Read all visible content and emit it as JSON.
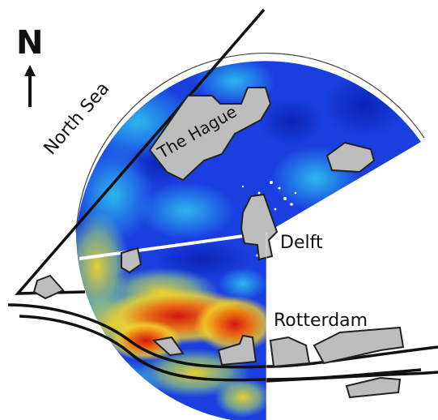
{
  "compass": {
    "letter": "N",
    "icon": "north-arrow-icon"
  },
  "labels": {
    "sea": "North Sea",
    "the_hague": "The Hague",
    "delft": "Delft",
    "rotterdam": "Rotterdam"
  },
  "colors": {
    "low": "#1736d8",
    "mid_low": "#1aa2e8",
    "mid": "#7fd2a0",
    "mid_high": "#f4d42a",
    "high": "#f07a10",
    "peak": "#d4140e",
    "city_fill": "#bdbdbd",
    "city_stroke": "#222222",
    "road": "#111111",
    "beam": "#ffffff"
  }
}
